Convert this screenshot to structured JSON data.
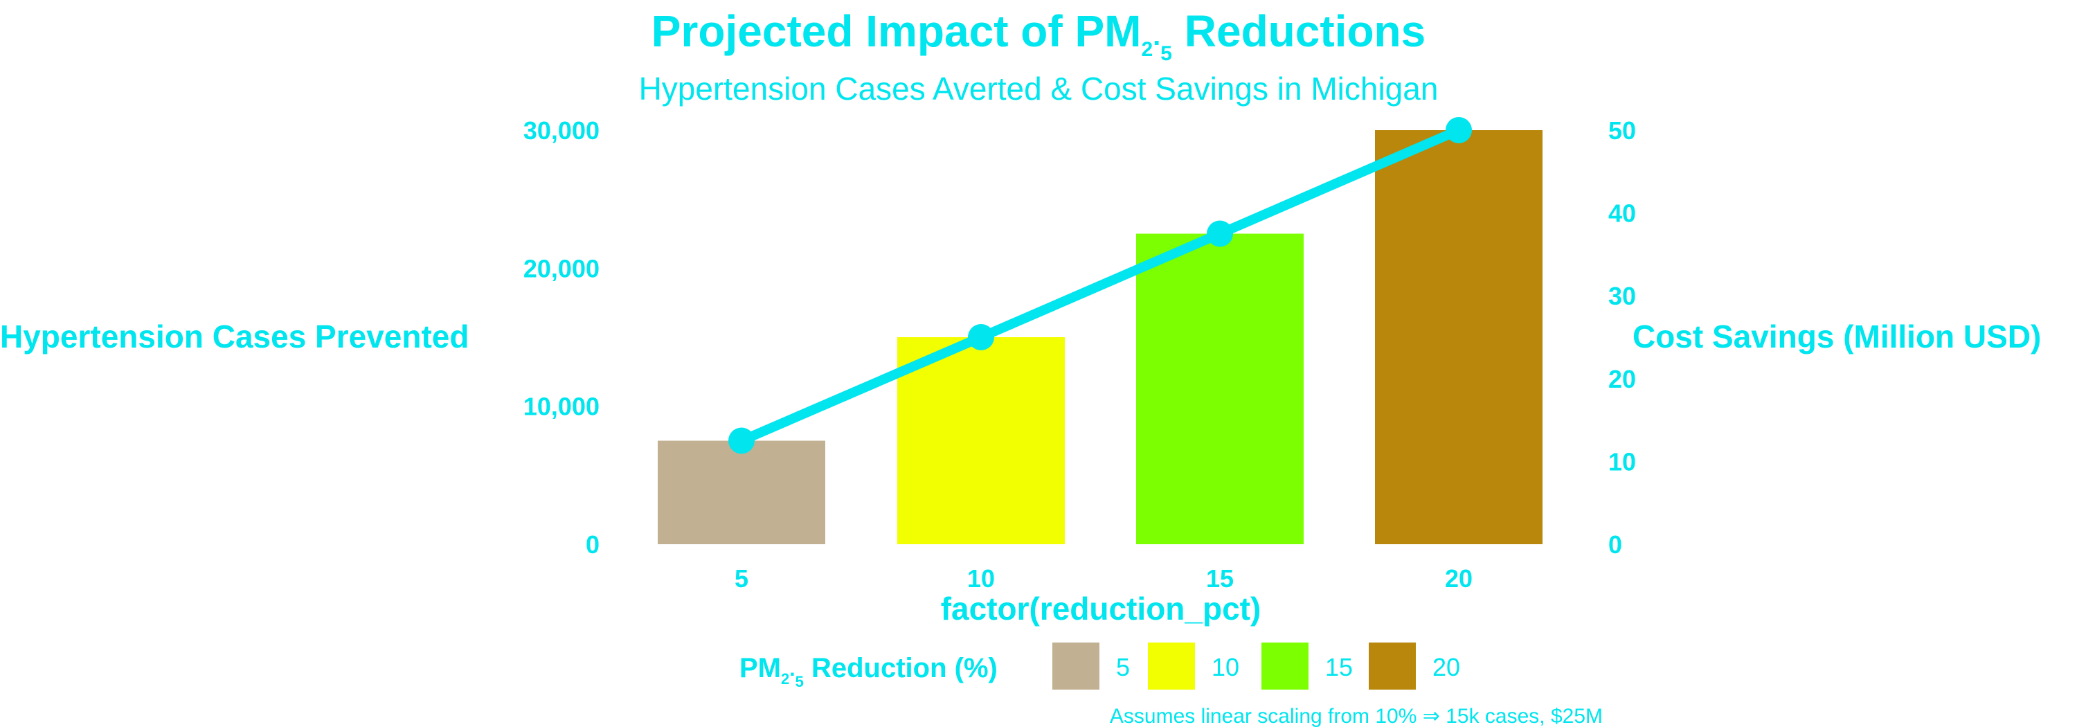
{
  "chart_data": {
    "type": "bar",
    "title_prefix": "Projected Impact of PM",
    "title_sub1": "2",
    "title_dot": ".",
    "title_sub2": "5",
    "title_suffix": " Reductions",
    "subtitle": "Hypertension Cases Averted & Cost Savings in Michigan",
    "xlabel": "factor(reduction_pct)",
    "ylabel_left": "Hypertension Cases Prevented",
    "ylabel_right": "Cost Savings (Million USD)",
    "categories": [
      "5",
      "10",
      "15",
      "20"
    ],
    "series": [
      {
        "name": "Hypertension Cases Prevented",
        "kind": "bar",
        "values": [
          7500,
          15000,
          22500,
          30000
        ]
      },
      {
        "name": "Cost Savings (Million USD)",
        "kind": "line",
        "axis": "right",
        "values": [
          12.5,
          25,
          37.5,
          50
        ]
      }
    ],
    "bar_colors": [
      "#c2b092",
      "#f2ff00",
      "#7cff00",
      "#b8870b"
    ],
    "line_color": "#00e5ee",
    "text_color": "#00e5ee",
    "ylim_left": [
      0,
      30000
    ],
    "yticks_left": [
      0,
      10000,
      20000,
      30000
    ],
    "yticks_left_labels": [
      "0",
      "10,000",
      "20,000",
      "30,000"
    ],
    "ylim_right": [
      0,
      50
    ],
    "yticks_right": [
      0,
      10,
      20,
      30,
      40,
      50
    ],
    "yticks_right_labels": [
      "0",
      "10",
      "20",
      "30",
      "40",
      "50"
    ],
    "grid": false,
    "legend": {
      "position": "bottom",
      "title_prefix": "PM",
      "title_sub1": "2",
      "title_dot": ".",
      "title_sub2": "5",
      "title_suffix": " Reduction (%)",
      "entries": [
        "5",
        "10",
        "15",
        "20"
      ]
    },
    "caption": "Assumes linear scaling from 10% ⇒ 15k cases, $25M"
  }
}
